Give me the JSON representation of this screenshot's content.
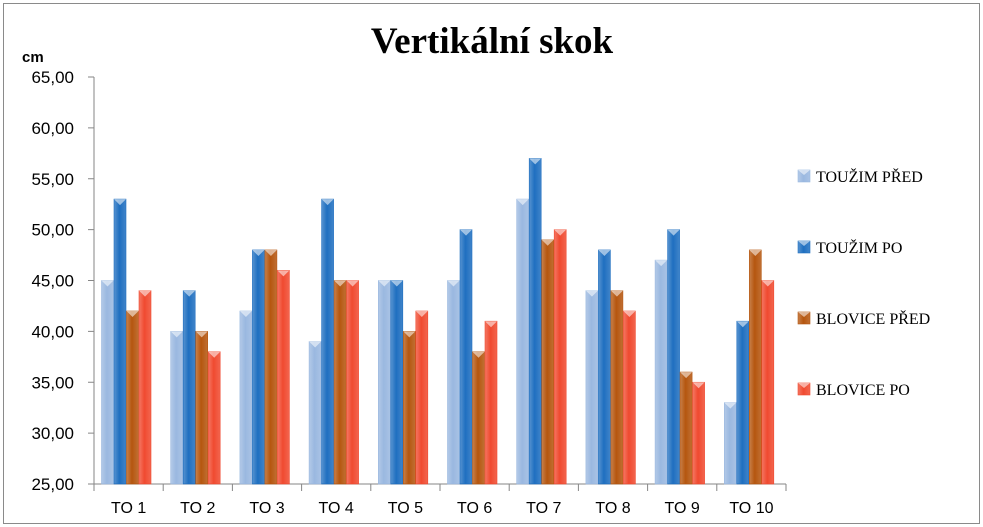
{
  "chart_data": {
    "type": "bar",
    "title": "Vertikální skok",
    "ylabel": "cm",
    "xlabel": "",
    "ylim": [
      25,
      65
    ],
    "yticks": [
      "25,00",
      "30,00",
      "35,00",
      "40,00",
      "45,00",
      "50,00",
      "55,00",
      "60,00",
      "65,00"
    ],
    "categories": [
      "TO 1",
      "TO 2",
      "TO 3",
      "TO 4",
      "TO 5",
      "TO 6",
      "TO 7",
      "TO 8",
      "TO 9",
      "TO 10"
    ],
    "legend_position": "right",
    "grid": false,
    "series": [
      {
        "name": "TOUŽIM PŘED",
        "color": "#9ab8e0",
        "values": [
          45,
          40,
          42,
          39,
          45,
          45,
          53,
          44,
          47,
          33
        ]
      },
      {
        "name": "TOUŽIM PO",
        "color": "#1f6fc0",
        "values": [
          53,
          44,
          48,
          53,
          45,
          50,
          57,
          48,
          50,
          41
        ]
      },
      {
        "name": "BLOVICE PŘED",
        "color": "#b5560f",
        "values": [
          42,
          40,
          48,
          45,
          40,
          38,
          49,
          44,
          36,
          48
        ]
      },
      {
        "name": "BLOVICE PO",
        "color": "#f04a30",
        "values": [
          44,
          38,
          46,
          45,
          42,
          41,
          50,
          42,
          35,
          45
        ]
      }
    ]
  }
}
